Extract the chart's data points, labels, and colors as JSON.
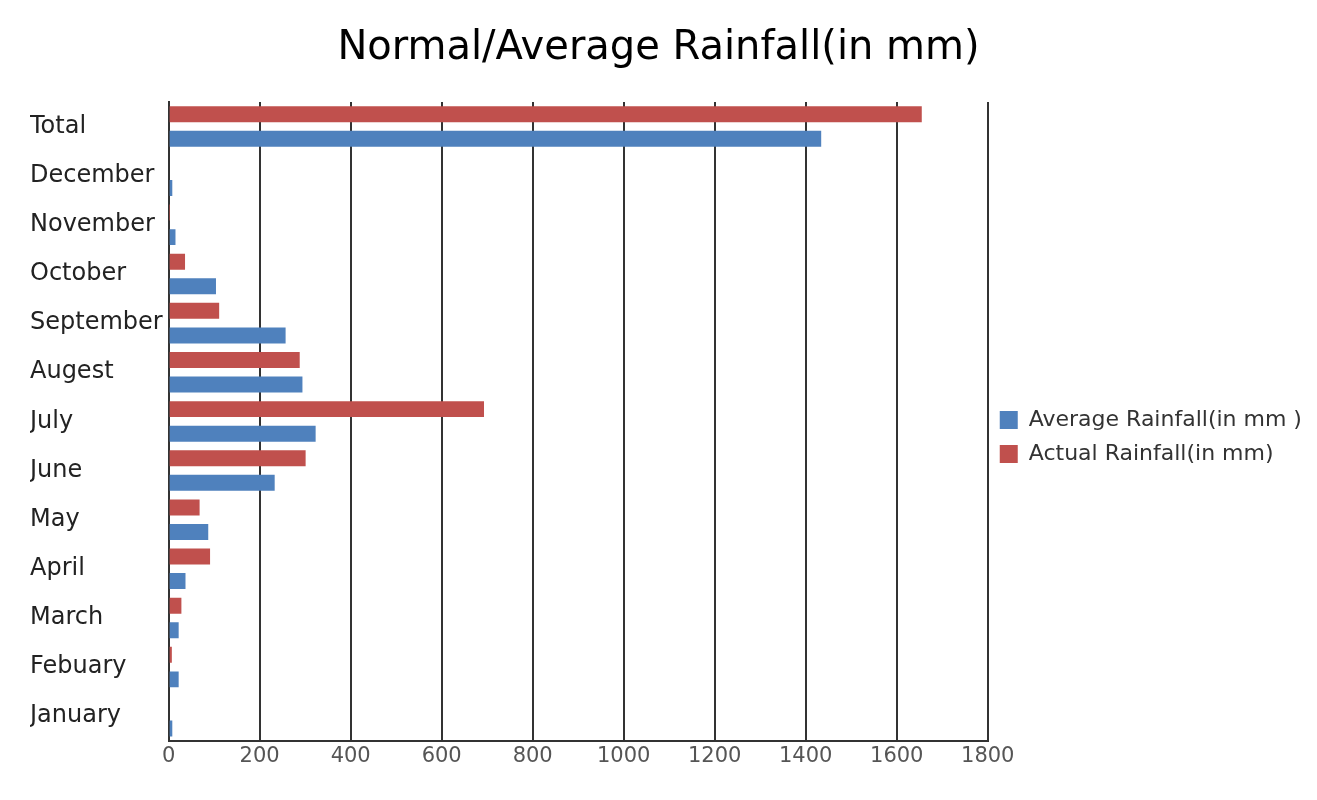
{
  "chart_data": {
    "type": "bar",
    "orientation": "horizontal",
    "title": "Normal/Average Rainfall(in mm)",
    "categories": [
      "Total",
      "December",
      "November",
      "October",
      "September",
      "Augest",
      "July",
      "June",
      "May",
      "April",
      "March",
      "Febuary",
      "January"
    ],
    "series": [
      {
        "name": "Average Rainfall(in mm )",
        "color": "#4f81bd",
        "values": [
          1434,
          8,
          15,
          104,
          257,
          294,
          323,
          233,
          87,
          37,
          22,
          22,
          8
        ]
      },
      {
        "name": "Actual Rainfall(in mm)",
        "color": "#c0504d",
        "values": [
          1655,
          null,
          1,
          36,
          111,
          288,
          693,
          301,
          68,
          91,
          28,
          7,
          null
        ]
      }
    ],
    "xlim": [
      0,
      1800
    ],
    "xticks": [
      0,
      200,
      400,
      600,
      800,
      1000,
      1200,
      1400,
      1600,
      1800
    ],
    "grid": "x",
    "legend": "right"
  }
}
